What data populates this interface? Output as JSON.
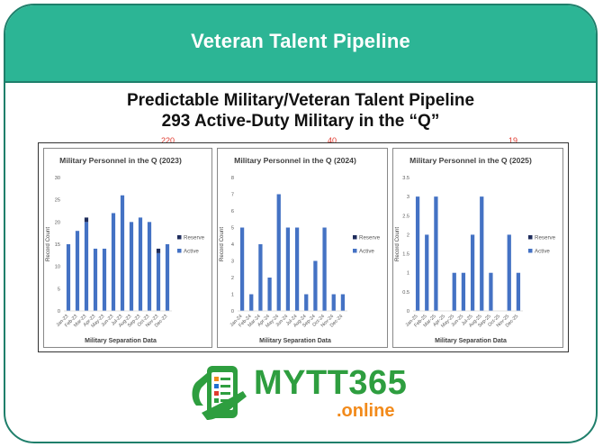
{
  "banner": {
    "title": "Veteran Talent Pipeline"
  },
  "headline": {
    "line1": "Predictable Military/Veteran Talent Pipeline",
    "line2": "293 Active-Duty Military in the “Q”"
  },
  "logo": {
    "main": "MYTT365",
    "sub": ".online"
  },
  "colors": {
    "banner": "#2cb595",
    "border": "#1f7f6b",
    "active": "#4472c4",
    "reserve": "#1f2d5c",
    "total_label": "#e03a2f",
    "logo_green": "#2e9e3f",
    "logo_orange": "#f28a1a"
  },
  "chart_data": [
    {
      "type": "bar",
      "stacked": true,
      "title": "Military Personnel in the Q (2023)",
      "total_label": "220",
      "xlabel": "Military Separation Data",
      "ylabel": "Record Count",
      "ylim": [
        0,
        30
      ],
      "yticks": [
        0,
        5,
        10,
        15,
        20,
        25,
        30
      ],
      "legend": "right",
      "categories": [
        "Jan-23",
        "Feb-23",
        "Mar-23",
        "Apr-23",
        "May-23",
        "Jun-23",
        "Jul-23",
        "Aug-23",
        "Sep-23",
        "Oct-23",
        "Nov-23",
        "Dec-23"
      ],
      "series": [
        {
          "name": "Active",
          "values": [
            15,
            18,
            20,
            14,
            14,
            22,
            26,
            20,
            21,
            20,
            13,
            15
          ]
        },
        {
          "name": "Reserve",
          "values": [
            0,
            0,
            1,
            0,
            0,
            0,
            0,
            0,
            0,
            0,
            1,
            0
          ]
        }
      ]
    },
    {
      "type": "bar",
      "stacked": true,
      "title": "Military Personnel in the Q (2024)",
      "total_label": "40",
      "xlabel": "Military Separation Data",
      "ylabel": "Record Count",
      "ylim": [
        0,
        8
      ],
      "yticks": [
        0,
        1,
        2,
        3,
        4,
        5,
        6,
        7,
        8
      ],
      "legend": "right",
      "categories": [
        "Jan-24",
        "Feb-24",
        "Mar-24",
        "Apr-24",
        "May-24",
        "Jun-24",
        "Jul-24",
        "Aug-24",
        "Sep-24",
        "Oct-24",
        "Nov-24",
        "Dec-24"
      ],
      "series": [
        {
          "name": "Active",
          "values": [
            5,
            1,
            4,
            2,
            7,
            5,
            5,
            1,
            3,
            5,
            1,
            1
          ]
        },
        {
          "name": "Reserve",
          "values": [
            0,
            0,
            0,
            0,
            0,
            0,
            0,
            0,
            0,
            0,
            0,
            0
          ]
        }
      ]
    },
    {
      "type": "bar",
      "stacked": true,
      "title": "Military Personnel in the Q (2025)",
      "total_label": "19",
      "xlabel": "Military Separation Data",
      "ylabel": "Record Count",
      "ylim": [
        0,
        3.5
      ],
      "yticks": [
        0,
        0.5,
        1,
        1.5,
        2,
        2.5,
        3,
        3.5
      ],
      "legend": "right",
      "categories": [
        "Jan-25",
        "Feb-25",
        "Mar-25",
        "Apr-25",
        "May-25",
        "Jun-25",
        "Jul-25",
        "Aug-25",
        "Sep-25",
        "Oct-25",
        "Nov-25",
        "Dec-25"
      ],
      "series": [
        {
          "name": "Active",
          "values": [
            3,
            2,
            3,
            0,
            1,
            1,
            2,
            3,
            1,
            0,
            2,
            1
          ]
        },
        {
          "name": "Reserve",
          "values": [
            0,
            0,
            0,
            0,
            0,
            0,
            0,
            0,
            0,
            0,
            0,
            0
          ]
        }
      ]
    }
  ]
}
